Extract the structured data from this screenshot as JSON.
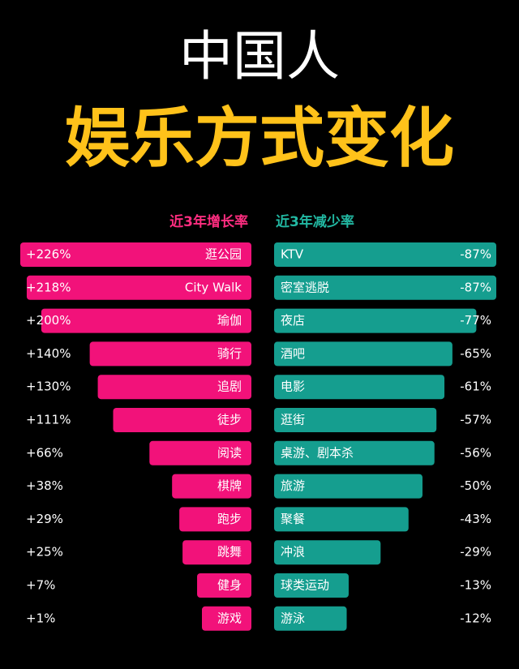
{
  "header": {
    "title": "中国人",
    "subtitle": "娱乐方式变化"
  },
  "chart_data": [
    {
      "type": "bar",
      "title": "近3年增长率",
      "color": "#f2127a",
      "categories": [
        "逛公园",
        "City Walk",
        "瑜伽",
        "骑行",
        "追剧",
        "徒步",
        "阅读",
        "棋牌",
        "跑步",
        "跳舞",
        "健身",
        "游戏"
      ],
      "values": [
        226,
        218,
        200,
        140,
        130,
        111,
        66,
        38,
        29,
        25,
        7,
        1
      ],
      "value_labels": [
        "+226%",
        "+218%",
        "+200%",
        "+140%",
        "+130%",
        "+111%",
        "+66%",
        "+38%",
        "+29%",
        "+25%",
        "+7%",
        "+1%"
      ]
    },
    {
      "type": "bar",
      "title": "近3年减少率",
      "color": "#159e8f",
      "categories": [
        "KTV",
        "密室逃脱",
        "夜店",
        "酒吧",
        "电影",
        "逛街",
        "桌游、剧本杀",
        "旅游",
        "聚餐",
        "冲浪",
        "球类运动",
        "游泳"
      ],
      "values": [
        -87,
        -87,
        -77,
        -65,
        -61,
        -57,
        -56,
        -50,
        -43,
        -29,
        -13,
        -12
      ],
      "value_labels": [
        "-87%",
        "-87%",
        "-77%",
        "-65%",
        "-61%",
        "-57%",
        "-56%",
        "-50%",
        "-43%",
        "-29%",
        "-13%",
        "-12%"
      ]
    }
  ]
}
